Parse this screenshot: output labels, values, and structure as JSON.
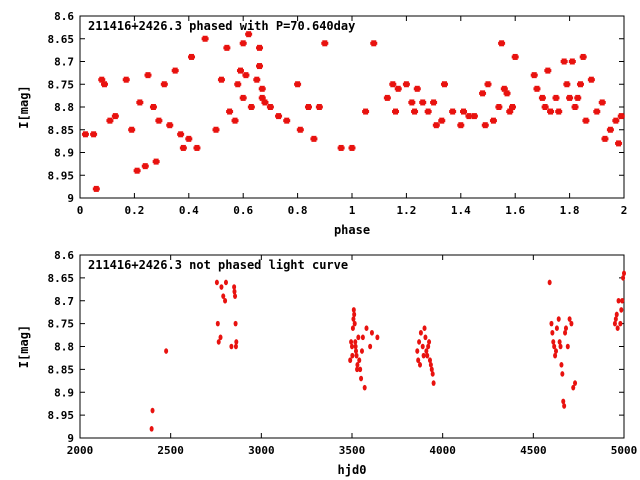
{
  "colors": {
    "points": "#e8120f",
    "axis": "#000000",
    "background": "#ffffff"
  },
  "chart_data": [
    {
      "type": "scatter",
      "title": "211416+2426.3 phased with P=70.640day",
      "xlabel": "phase",
      "ylabel": "I[mag]",
      "xlim": [
        0,
        2
      ],
      "ylim": [
        9,
        8.6
      ],
      "y_inverted": true,
      "grid": false,
      "xticks": [
        0,
        0.2,
        0.4,
        0.6,
        0.8,
        1,
        1.2,
        1.4,
        1.6,
        1.8,
        2
      ],
      "xtick_labels": [
        "0",
        "0.2",
        "0.4",
        "0.6",
        "0.8",
        "1",
        "1.2",
        "1.4",
        "1.6",
        "1.8",
        "2"
      ],
      "yticks": [
        8.6,
        8.65,
        8.7,
        8.75,
        8.8,
        8.85,
        8.9,
        8.95,
        9
      ],
      "ytick_labels": [
        "8.6",
        "8.65",
        "8.7",
        "8.75",
        "8.8",
        "8.85",
        "8.9",
        "8.95",
        "9"
      ],
      "series": [
        {
          "x": [
            0.02,
            0.05,
            0.06,
            0.08,
            0.09,
            0.11,
            0.13,
            0.17,
            0.19,
            0.21,
            0.22,
            0.24,
            0.25,
            0.27,
            0.28,
            0.29,
            0.31,
            0.33,
            0.35,
            0.37,
            0.38,
            0.4,
            0.41,
            0.43,
            0.46,
            0.5,
            0.52,
            0.54,
            0.55,
            0.57,
            0.58,
            0.59,
            0.6,
            0.6,
            0.61,
            0.62,
            0.63,
            0.65,
            0.66,
            0.66,
            0.67,
            0.67,
            0.68,
            0.7,
            0.73,
            0.76,
            0.8,
            0.81,
            0.84,
            0.86,
            0.88,
            0.9,
            0.96,
            1.0,
            1.05,
            1.08,
            1.13,
            1.15,
            1.16,
            1.17,
            1.2,
            1.22,
            1.23,
            1.24,
            1.26,
            1.28,
            1.3,
            1.31,
            1.33,
            1.34,
            1.37,
            1.4,
            1.41,
            1.43,
            1.45,
            1.48,
            1.49,
            1.5,
            1.52,
            1.54,
            1.55,
            1.56,
            1.57,
            1.58,
            1.59,
            1.6,
            1.67,
            1.68,
            1.7,
            1.71,
            1.72,
            1.73,
            1.75,
            1.76,
            1.78,
            1.79,
            1.8,
            1.81,
            1.82,
            1.83,
            1.84,
            1.85,
            1.86,
            1.88,
            1.9,
            1.92,
            1.93,
            1.95,
            1.97,
            1.98,
            1.99
          ],
          "y": [
            8.86,
            8.86,
            8.98,
            8.74,
            8.75,
            8.83,
            8.82,
            8.74,
            8.85,
            8.94,
            8.79,
            8.93,
            8.73,
            8.8,
            8.92,
            8.83,
            8.75,
            8.84,
            8.72,
            8.86,
            8.89,
            8.87,
            8.69,
            8.89,
            8.65,
            8.85,
            8.74,
            8.67,
            8.81,
            8.83,
            8.75,
            8.72,
            8.78,
            8.66,
            8.73,
            8.64,
            8.8,
            8.74,
            8.71,
            8.67,
            8.76,
            8.78,
            8.79,
            8.8,
            8.82,
            8.83,
            8.75,
            8.85,
            8.8,
            8.87,
            8.8,
            8.66,
            8.89,
            8.89,
            8.81,
            8.66,
            8.78,
            8.75,
            8.81,
            8.76,
            8.75,
            8.79,
            8.81,
            8.76,
            8.79,
            8.81,
            8.79,
            8.84,
            8.83,
            8.75,
            8.81,
            8.84,
            8.81,
            8.82,
            8.82,
            8.77,
            8.84,
            8.75,
            8.83,
            8.8,
            8.66,
            8.76,
            8.77,
            8.81,
            8.8,
            8.69,
            8.73,
            8.76,
            8.78,
            8.8,
            8.72,
            8.81,
            8.78,
            8.81,
            8.7,
            8.75,
            8.78,
            8.7,
            8.8,
            8.78,
            8.75,
            8.69,
            8.83,
            8.74,
            8.81,
            8.79,
            8.87,
            8.85,
            8.83,
            8.88,
            8.82
          ]
        }
      ]
    },
    {
      "type": "scatter",
      "title": "211416+2426.3 not phased light curve",
      "xlabel": "hjd0",
      "ylabel": "I[mag]",
      "xlim": [
        2000,
        5000
      ],
      "ylim": [
        9,
        8.6
      ],
      "y_inverted": true,
      "grid": false,
      "xticks": [
        2000,
        2500,
        3000,
        3500,
        4000,
        4500,
        5000
      ],
      "xtick_labels": [
        "2000",
        "2500",
        "3000",
        "3500",
        "4000",
        "4500",
        "5000"
      ],
      "yticks": [
        8.6,
        8.65,
        8.7,
        8.75,
        8.8,
        8.85,
        8.9,
        8.95,
        9
      ],
      "ytick_labels": [
        "8.6",
        "8.65",
        "8.7",
        "8.75",
        "8.8",
        "8.85",
        "8.9",
        "8.95",
        "9"
      ],
      "series": [
        {
          "x": [
            2395,
            2400,
            2475,
            2755,
            2760,
            2765,
            2775,
            2780,
            2790,
            2800,
            2805,
            2835,
            2850,
            2852,
            2855,
            2858,
            2860,
            2862,
            3490,
            3495,
            3500,
            3502,
            3505,
            3508,
            3510,
            3512,
            3515,
            3518,
            3520,
            3522,
            3525,
            3528,
            3530,
            3535,
            3540,
            3545,
            3550,
            3555,
            3560,
            3570,
            3580,
            3600,
            3610,
            3640,
            3860,
            3865,
            3870,
            3875,
            3880,
            3890,
            3895,
            3900,
            3905,
            3910,
            3915,
            3920,
            3925,
            3930,
            3935,
            3940,
            3945,
            3950,
            4590,
            4600,
            4605,
            4610,
            4615,
            4620,
            4625,
            4630,
            4640,
            4645,
            4650,
            4655,
            4660,
            4665,
            4670,
            4675,
            4680,
            4690,
            4700,
            4710,
            4720,
            4730,
            4950,
            4955,
            4960,
            4965,
            4970,
            4980,
            4985,
            4990,
            4995,
            5000
          ],
          "y": [
            8.98,
            8.94,
            8.81,
            8.66,
            8.75,
            8.79,
            8.78,
            8.67,
            8.69,
            8.7,
            8.66,
            8.8,
            8.67,
            8.68,
            8.69,
            8.75,
            8.8,
            8.79,
            8.83,
            8.79,
            8.8,
            8.82,
            8.76,
            8.74,
            8.72,
            8.73,
            8.75,
            8.79,
            8.8,
            8.81,
            8.82,
            8.85,
            8.84,
            8.78,
            8.83,
            8.85,
            8.87,
            8.81,
            8.78,
            8.89,
            8.76,
            8.8,
            8.77,
            8.78,
            8.81,
            8.83,
            8.79,
            8.84,
            8.77,
            8.8,
            8.82,
            8.76,
            8.78,
            8.81,
            8.82,
            8.8,
            8.79,
            8.83,
            8.84,
            8.85,
            8.86,
            8.88,
            8.66,
            8.75,
            8.77,
            8.79,
            8.8,
            8.82,
            8.81,
            8.76,
            8.74,
            8.79,
            8.8,
            8.84,
            8.86,
            8.92,
            8.93,
            8.77,
            8.76,
            8.8,
            8.74,
            8.75,
            8.89,
            8.88,
            8.75,
            8.74,
            8.73,
            8.76,
            8.7,
            8.75,
            8.72,
            8.7,
            8.65,
            8.64
          ]
        }
      ]
    }
  ]
}
